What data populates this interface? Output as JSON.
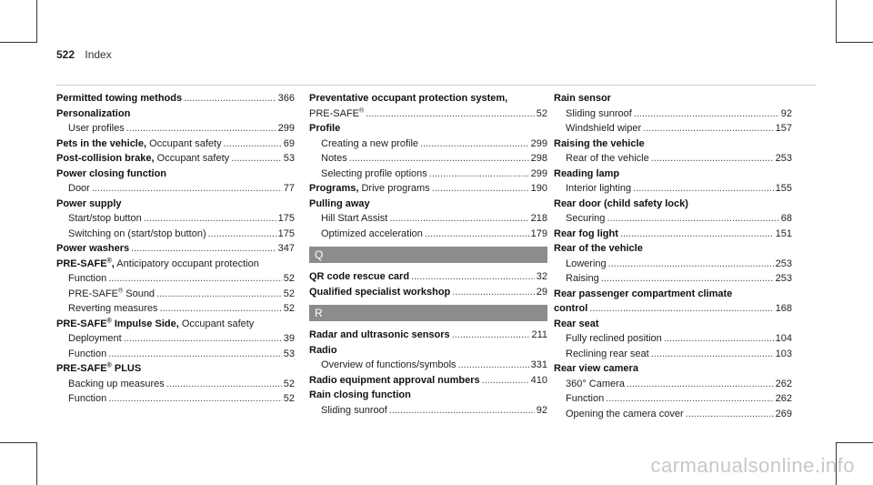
{
  "header": {
    "page_number": "522",
    "title": "Index"
  },
  "col1": {
    "e1": {
      "t": "Permitted towing methods",
      "p": "366"
    },
    "e2": {
      "t": "Personalization",
      "s1": {
        "t": "User profiles",
        "p": "299"
      }
    },
    "e3": {
      "t": "Pets in the vehicle,",
      "r": " Occupant safety",
      "p": "69"
    },
    "e4": {
      "t": "Post-collision brake,",
      "r": " Occupant safety",
      "p": "53"
    },
    "e5": {
      "t": "Power closing function",
      "s1": {
        "t": "Door",
        "p": "77"
      }
    },
    "e6": {
      "t": "Power supply",
      "s1": {
        "t": "Start/stop button",
        "p": "175"
      },
      "s2": {
        "t": "Switching on (start/stop button)",
        "p": "175"
      }
    },
    "e7": {
      "t": "Power washers",
      "p": "347"
    },
    "e8": {
      "t": "PRE-SAFE",
      "sup": "®",
      "t2": ",",
      "r": " Anticipatory occupant protection",
      "s1": {
        "t": "Function",
        "p": "52"
      },
      "s2": {
        "t": "PRE-SAFE",
        "sup": "®",
        "t2": " Sound",
        "p": "52"
      },
      "s3": {
        "t": "Reverting measures",
        "p": "52"
      }
    },
    "e9": {
      "t": "PRE-SAFE",
      "sup": "®",
      "t2": " Impulse Side,",
      "r": " Occupant safety",
      "s1": {
        "t": "Deployment",
        "p": "39"
      },
      "s2": {
        "t": "Function",
        "p": "53"
      }
    },
    "e10": {
      "t": "PRE-SAFE",
      "sup": "®",
      "t2": " PLUS",
      "s1": {
        "t": "Backing up measures",
        "p": "52"
      },
      "s2": {
        "t": "Function",
        "p": "52"
      }
    }
  },
  "col2": {
    "e1": {
      "t": "Preventative occupant protection system,",
      "s1": {
        "t": "PRE-SAFE",
        "sup": "®",
        "p": "52"
      }
    },
    "e2": {
      "t": "Profile",
      "s1": {
        "t": "Creating a new profile",
        "p": "299"
      },
      "s2": {
        "t": "Notes",
        "p": "298"
      },
      "s3": {
        "t": "Selecting profile options",
        "p": "299"
      }
    },
    "e3": {
      "t": "Programs,",
      "r": " Drive programs",
      "p": "190"
    },
    "e4": {
      "t": "Pulling away",
      "s1": {
        "t": "Hill Start Assist",
        "p": "218"
      },
      "s2": {
        "t": "Optimized acceleration",
        "p": "179"
      }
    },
    "secQ": "Q",
    "e5": {
      "t": "QR code rescue card",
      "p": "32"
    },
    "e6": {
      "t": "Qualified specialist workshop",
      "p": "29"
    },
    "secR": "R",
    "e7": {
      "t": "Radar and ultrasonic sensors",
      "p": "211"
    },
    "e8": {
      "t": "Radio",
      "s1": {
        "t": "Overview of functions/symbols",
        "p": "331"
      }
    },
    "e9": {
      "t": "Radio equipment approval numbers",
      "p": "410"
    },
    "e10": {
      "t": "Rain closing function",
      "s1": {
        "t": "Sliding sunroof",
        "p": "92"
      }
    }
  },
  "col3": {
    "e1": {
      "t": "Rain sensor",
      "s1": {
        "t": "Sliding sunroof",
        "p": "92"
      },
      "s2": {
        "t": "Windshield wiper",
        "p": "157"
      }
    },
    "e2": {
      "t": "Raising the vehicle",
      "s1": {
        "t": "Rear of the vehicle",
        "p": "253"
      }
    },
    "e3": {
      "t": "Reading lamp",
      "s1": {
        "t": "Interior lighting",
        "p": "155"
      }
    },
    "e4": {
      "t": "Rear door (child safety lock)",
      "s1": {
        "t": "Securing",
        "p": "68"
      }
    },
    "e5": {
      "t": "Rear fog light",
      "p": "151"
    },
    "e6": {
      "t": "Rear of the vehicle",
      "s1": {
        "t": "Lowering",
        "p": "253"
      },
      "s2": {
        "t": "Raising",
        "p": "253"
      }
    },
    "e7": {
      "t": "Rear passenger compartment climate",
      "t2": "control",
      "p": "168"
    },
    "e8": {
      "t": "Rear seat",
      "s1": {
        "t": "Fully reclined position",
        "p": "104"
      },
      "s2": {
        "t": "Reclining rear seat",
        "p": "103"
      }
    },
    "e9": {
      "t": "Rear view camera",
      "s1": {
        "t": "360° Camera",
        "p": "262"
      },
      "s2": {
        "t": "Function",
        "p": "262"
      },
      "s3": {
        "t": "Opening the camera cover",
        "p": "269"
      }
    }
  },
  "watermark": "carmanualsonline.info"
}
